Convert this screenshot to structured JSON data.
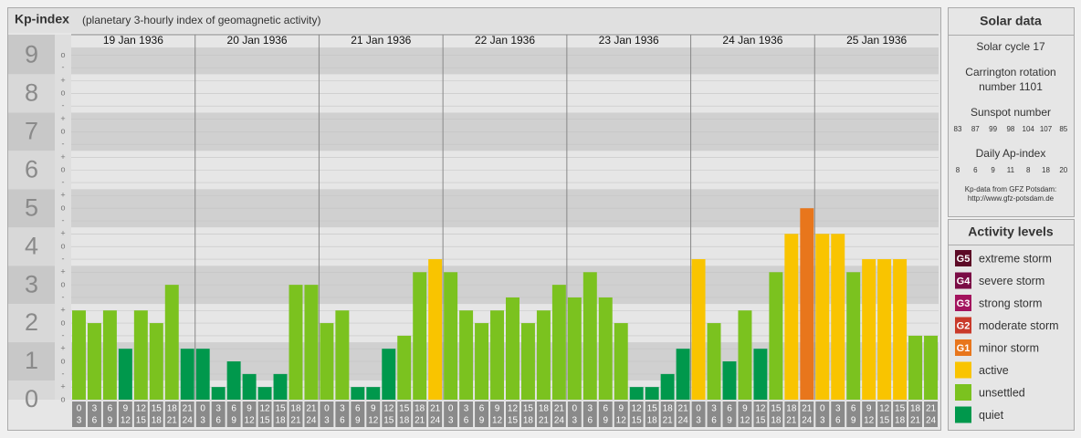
{
  "chart_data": {
    "type": "bar",
    "title": "Kp-index",
    "subtitle": "(planetary 3-hourly index of geomagnetic activity)",
    "ylim": [
      0,
      9.2
    ],
    "yticks": [
      0,
      1,
      2,
      3,
      4,
      5,
      6,
      7,
      8,
      9
    ],
    "minor_yticks": [
      {
        "value": 0,
        "label": "o"
      },
      {
        "value": 0.33,
        "label": "+"
      },
      {
        "value": 0.67,
        "label": "-"
      },
      {
        "value": 1,
        "label": "o"
      },
      {
        "value": 1.33,
        "label": "+"
      },
      {
        "value": 1.67,
        "label": "-"
      },
      {
        "value": 2,
        "label": "o"
      },
      {
        "value": 2.33,
        "label": "+"
      },
      {
        "value": 2.67,
        "label": "-"
      },
      {
        "value": 3,
        "label": "o"
      },
      {
        "value": 3.33,
        "label": "+"
      },
      {
        "value": 3.67,
        "label": "-"
      },
      {
        "value": 4,
        "label": "o"
      },
      {
        "value": 4.33,
        "label": "+"
      },
      {
        "value": 4.67,
        "label": "-"
      },
      {
        "value": 5,
        "label": "o"
      },
      {
        "value": 5.33,
        "label": "+"
      },
      {
        "value": 5.67,
        "label": "-"
      },
      {
        "value": 6,
        "label": "o"
      },
      {
        "value": 6.33,
        "label": "+"
      },
      {
        "value": 6.67,
        "label": "-"
      },
      {
        "value": 7,
        "label": "o"
      },
      {
        "value": 7.33,
        "label": "+"
      },
      {
        "value": 7.67,
        "label": "-"
      },
      {
        "value": 8,
        "label": "o"
      },
      {
        "value": 8.33,
        "label": "+"
      },
      {
        "value": 8.67,
        "label": "-"
      },
      {
        "value": 9,
        "label": "o"
      }
    ],
    "grid": true,
    "hours": [
      [
        0,
        3
      ],
      [
        3,
        6
      ],
      [
        6,
        9
      ],
      [
        9,
        12
      ],
      [
        12,
        15
      ],
      [
        15,
        18
      ],
      [
        18,
        21
      ],
      [
        21,
        24
      ]
    ],
    "days": [
      {
        "date": "19 Jan 1936",
        "values": [
          2.33,
          2,
          2.33,
          1.33,
          2.33,
          2,
          3,
          1.33
        ],
        "colors": [
          "#7bc21f",
          "#7bc21f",
          "#7bc21f",
          "#00984c",
          "#7bc21f",
          "#7bc21f",
          "#7bc21f",
          "#00984c"
        ]
      },
      {
        "date": "20 Jan 1936",
        "values": [
          1.33,
          0.33,
          1,
          0.67,
          0.33,
          0.67,
          3,
          3
        ],
        "colors": [
          "#00984c",
          "#00984c",
          "#00984c",
          "#00984c",
          "#00984c",
          "#00984c",
          "#7bc21f",
          "#7bc21f"
        ]
      },
      {
        "date": "21 Jan 1936",
        "values": [
          2,
          2.33,
          0.33,
          0.33,
          1.33,
          1.67,
          3.33,
          3.67
        ],
        "colors": [
          "#7bc21f",
          "#7bc21f",
          "#00984c",
          "#00984c",
          "#00984c",
          "#7bc21f",
          "#7bc21f",
          "#f9c400"
        ]
      },
      {
        "date": "22 Jan 1936",
        "values": [
          3.33,
          2.33,
          2,
          2.33,
          2.67,
          2,
          2.33,
          3
        ],
        "colors": [
          "#7bc21f",
          "#7bc21f",
          "#7bc21f",
          "#7bc21f",
          "#7bc21f",
          "#7bc21f",
          "#7bc21f",
          "#7bc21f"
        ]
      },
      {
        "date": "23 Jan 1936",
        "values": [
          2.67,
          3.33,
          2.67,
          2,
          0.33,
          0.33,
          0.67,
          1.33
        ],
        "colors": [
          "#7bc21f",
          "#7bc21f",
          "#7bc21f",
          "#7bc21f",
          "#00984c",
          "#00984c",
          "#00984c",
          "#00984c"
        ]
      },
      {
        "date": "24 Jan 1936",
        "values": [
          3.67,
          2,
          1,
          2.33,
          1.33,
          3.33,
          4.33,
          5
        ],
        "colors": [
          "#f9c400",
          "#7bc21f",
          "#00984c",
          "#7bc21f",
          "#00984c",
          "#7bc21f",
          "#f9c400",
          "#e8761c"
        ]
      },
      {
        "date": "25 Jan 1936",
        "values": [
          4.33,
          4.33,
          3.33,
          3.67,
          3.67,
          3.67,
          1.67,
          1.67
        ],
        "colors": [
          "#f9c400",
          "#f9c400",
          "#7bc21f",
          "#f9c400",
          "#f9c400",
          "#f9c400",
          "#7bc21f",
          "#7bc21f"
        ]
      }
    ]
  },
  "sidebar": {
    "solar": {
      "title": "Solar data",
      "cycle": "Solar cycle 17",
      "carrington": [
        "Carrington rotation",
        "number 1101"
      ],
      "sunspot_title": "Sunspot number",
      "sunspots": [
        83,
        87,
        99,
        98,
        104,
        107,
        85
      ],
      "ap_title": "Daily Ap-index",
      "ap": [
        8,
        6,
        9,
        11,
        8,
        18,
        20
      ],
      "credit": [
        "Kp-data from GFZ Potsdam:",
        "http://www.gfz-potsdam.de"
      ]
    },
    "legend": {
      "title": "Activity levels",
      "items": [
        {
          "badge": "G5",
          "label": "extreme storm",
          "color": "#5c0a26"
        },
        {
          "badge": "G4",
          "label": "severe storm",
          "color": "#7a0c45"
        },
        {
          "badge": "G3",
          "label": "strong storm",
          "color": "#a3145e"
        },
        {
          "badge": "G2",
          "label": "moderate storm",
          "color": "#c93a2a"
        },
        {
          "badge": "G1",
          "label": "minor storm",
          "color": "#e8761c"
        },
        {
          "label": "active",
          "color": "#f9c400"
        },
        {
          "label": "unsettled",
          "color": "#7bc21f"
        },
        {
          "label": "quiet",
          "color": "#00984c"
        }
      ]
    }
  }
}
